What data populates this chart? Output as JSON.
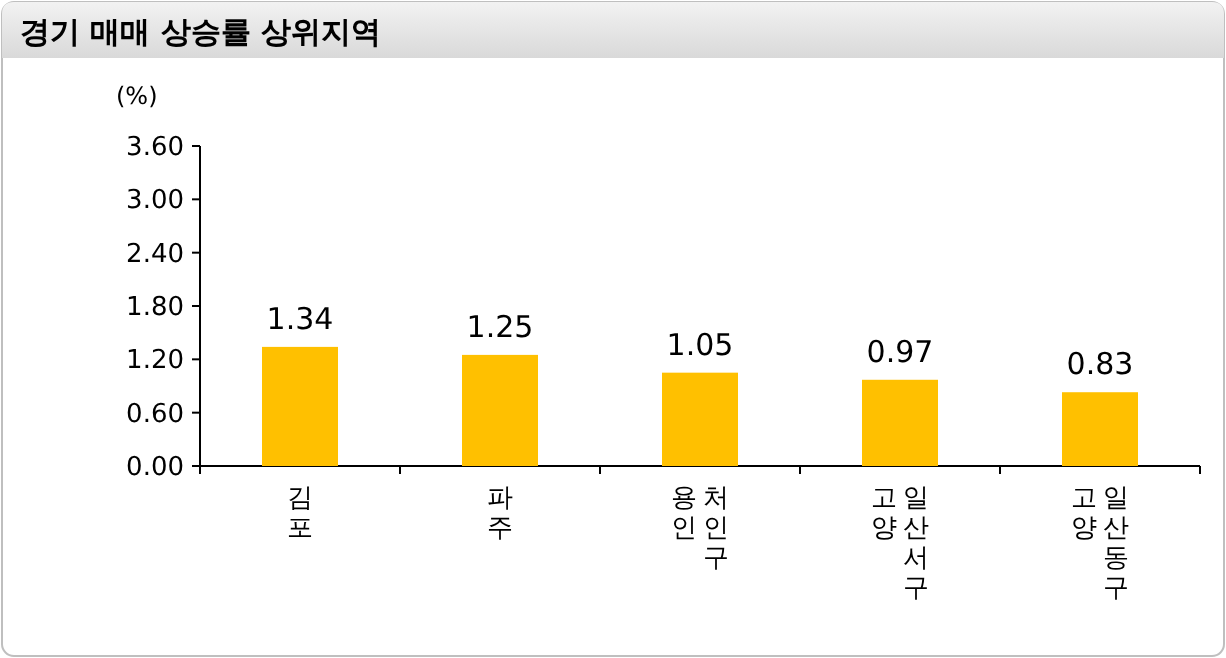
{
  "chart_data": {
    "type": "bar",
    "title": "경기 매매 상승률 상위지역",
    "ylabel": "(%)",
    "categories": [
      "김포",
      "파주",
      "용인 처인구",
      "고양 일산서구",
      "고양 일산동구"
    ],
    "values": [
      1.34,
      1.25,
      1.05,
      0.97,
      0.83
    ],
    "color": "#ffc000",
    "ylim": [
      0,
      3.6
    ],
    "yticks": [
      {
        "value": 0,
        "label": "0.00"
      },
      {
        "value": 0.6,
        "label": "0.60"
      },
      {
        "value": 1.2,
        "label": "1.20"
      },
      {
        "value": 1.8,
        "label": "1.80"
      },
      {
        "value": 2.4,
        "label": "2.40"
      },
      {
        "value": 3.0,
        "label": "3.00"
      },
      {
        "value": 3.6,
        "label": "3.60"
      }
    ],
    "data_labels": true,
    "grid": false
  }
}
